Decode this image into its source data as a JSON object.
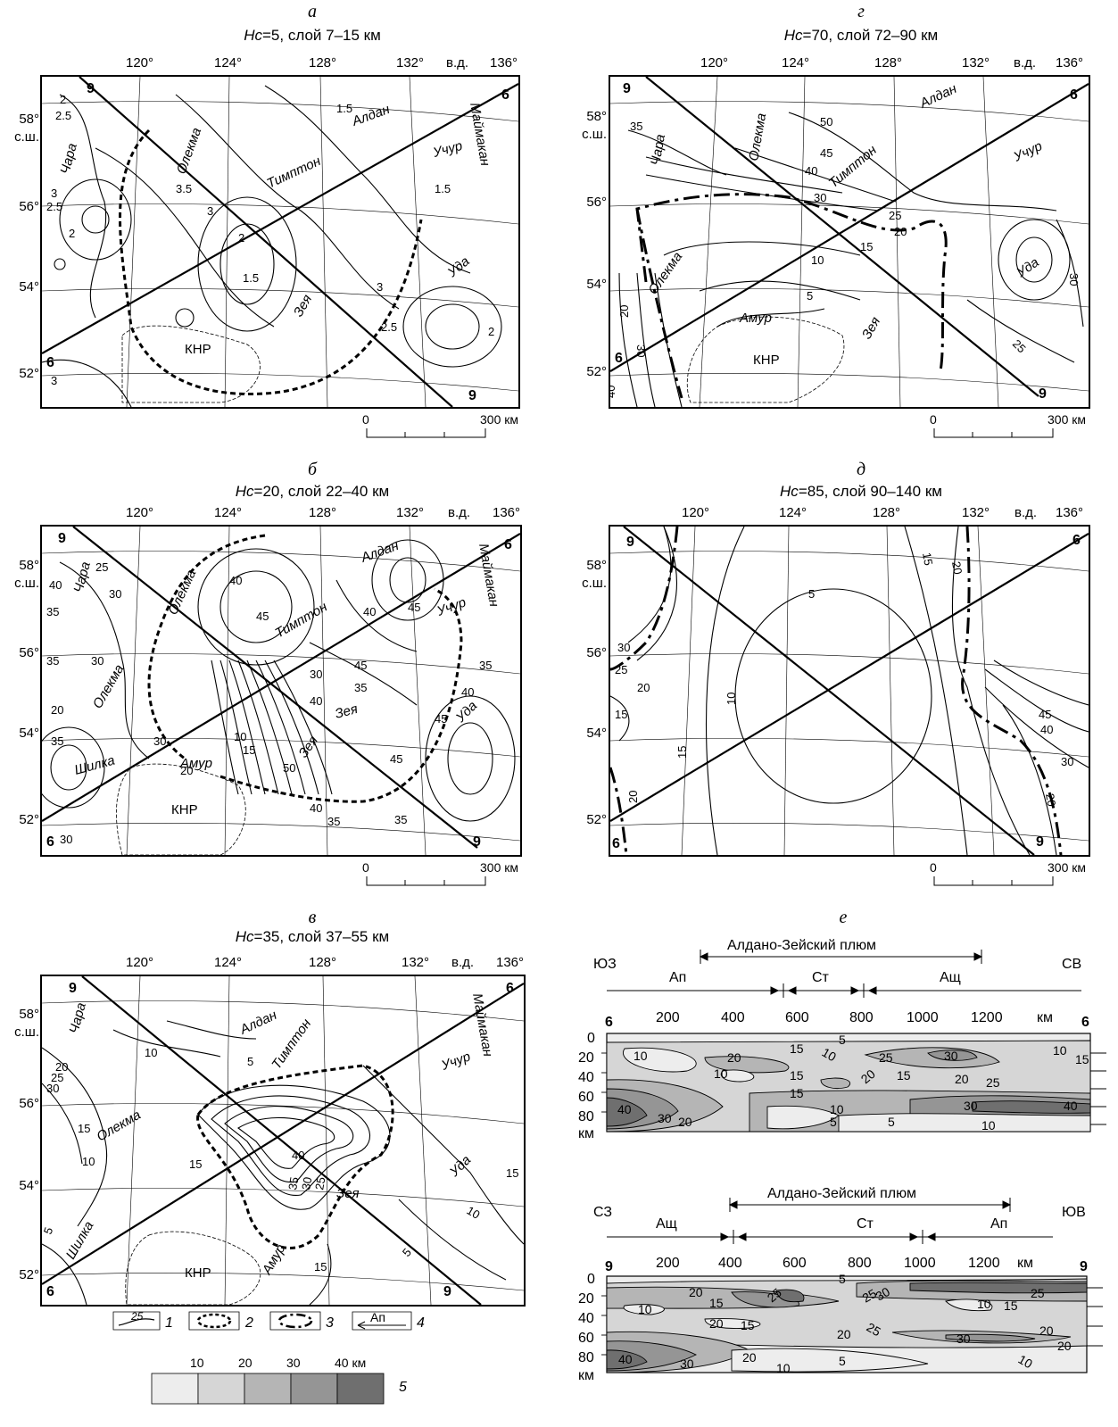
{
  "panels": [
    {
      "id": "a",
      "letter": "а",
      "title_prefix": "Нс",
      "title_rest": "=5, слой 7–15 км",
      "labels": [
        "Чара",
        "Олекма",
        "Тимптон",
        "Алдан",
        "Учур",
        "Маймакан",
        "Зея",
        "Уда",
        "КНР"
      ],
      "contours": [
        "2",
        "2.5",
        "3",
        "3.5",
        "3",
        "2",
        "1.5",
        "1.5",
        "2",
        "2.5",
        "3",
        "1.5",
        "2",
        "3",
        "2.5"
      ]
    },
    {
      "id": "g",
      "letter": "г",
      "title_prefix": "Нс",
      "title_rest": "=70, слой 72–90 км",
      "labels": [
        "Олекма",
        "Алдан",
        "Чара",
        "Тимптон",
        "Учур",
        "Олекма",
        "Зея",
        "Уда",
        "Амур",
        "КНР"
      ],
      "contours": [
        "35",
        "50",
        "45",
        "40",
        "30",
        "25",
        "20",
        "15",
        "10",
        "5",
        "20",
        "30",
        "40",
        "25",
        "30"
      ]
    },
    {
      "id": "b",
      "letter": "б",
      "title_prefix": "Нс",
      "title_rest": "=20, слой 22–40 км",
      "labels": [
        "Олекма",
        "Чара",
        "Алдан",
        "Маймакан",
        "Тимптон",
        "Учур",
        "Олекма",
        "Зея",
        "Зея",
        "Уда",
        "Шилка",
        "Амур",
        "КНР"
      ],
      "contours": [
        "25",
        "30",
        "40",
        "35",
        "35",
        "30",
        "20",
        "40",
        "35",
        "45",
        "40",
        "45",
        "10",
        "15",
        "30",
        "40",
        "50",
        "45",
        "40",
        "35",
        "30",
        "20",
        "45",
        "35",
        "40",
        "35",
        "45",
        "35",
        "30"
      ]
    },
    {
      "id": "d",
      "letter": "д",
      "title_prefix": "Нс",
      "title_rest": "=85, слой 90–140 км",
      "labels": [],
      "contours": [
        "5",
        "30",
        "25",
        "20",
        "15",
        "10",
        "15",
        "20",
        "20",
        "15",
        "45",
        "40",
        "30",
        "20"
      ]
    },
    {
      "id": "v",
      "letter": "в",
      "title_prefix": "Нс",
      "title_rest": "=35, слой 37–55 км",
      "labels": [
        "Чара",
        "Алдан",
        "Тимптон",
        "Маймакан",
        "Учур",
        "Олекма",
        "Зея",
        "Уда",
        "Шилка",
        "Амур",
        "КНР"
      ],
      "contours": [
        "10",
        "5",
        "30",
        "25",
        "20",
        "15",
        "10",
        "15",
        "40",
        "35",
        "30",
        "25",
        "5",
        "10",
        "15",
        "15",
        "5"
      ]
    }
  ],
  "lon_labels": [
    "120°",
    "124°",
    "128°",
    "132°",
    "в.д.",
    "136°"
  ],
  "lat_labels": [
    "58°",
    "с.ш.",
    "56°",
    "54°",
    "52°"
  ],
  "profile_markers": {
    "a": "6",
    "b": "9"
  },
  "scale": {
    "start": "0",
    "end": "300 км"
  },
  "sections": {
    "letter": "е",
    "top": {
      "plume": "Алдано-Зейский плюм",
      "left": "ЮЗ",
      "right": "СВ",
      "segments": [
        "Ап",
        "Ст",
        "Ащ"
      ],
      "end_left": "6",
      "end_right": "6",
      "x_ticks": [
        "200",
        "400",
        "600",
        "800",
        "1000",
        "1200",
        "км"
      ],
      "y_ticks": [
        "0",
        "20",
        "40",
        "60",
        "80",
        "км"
      ],
      "contours": [
        "5",
        "10",
        "15",
        "10",
        "20",
        "10",
        "25",
        "30",
        "10",
        "15",
        "15",
        "20",
        "15",
        "20",
        "25",
        "40",
        "30",
        "20",
        "15",
        "10",
        "5",
        "5",
        "30",
        "40",
        "10"
      ]
    },
    "bottom": {
      "plume": "Алдано-Зейский плюм",
      "left": "СЗ",
      "right": "ЮВ",
      "segments": [
        "Ащ",
        "Ст",
        "Ап"
      ],
      "end_left": "9",
      "end_right": "9",
      "x_ticks": [
        "200",
        "400",
        "600",
        "800",
        "1000",
        "1200",
        "км"
      ],
      "y_ticks": [
        "0",
        "20",
        "40",
        "60",
        "80",
        "км"
      ],
      "contours": [
        "20",
        "15",
        "10",
        "25",
        "5",
        "25",
        "30",
        "10",
        "15",
        "25",
        "20",
        "15",
        "20",
        "25",
        "30",
        "20",
        "40",
        "30",
        "20",
        "10",
        "5",
        "10",
        "20"
      ]
    }
  },
  "legend": {
    "items": [
      "1",
      "2",
      "3",
      "4",
      "5"
    ],
    "sample_contour": "25",
    "arrow_label": "Ап",
    "shade_ticks": [
      "10",
      "20",
      "30",
      "40 км"
    ]
  }
}
